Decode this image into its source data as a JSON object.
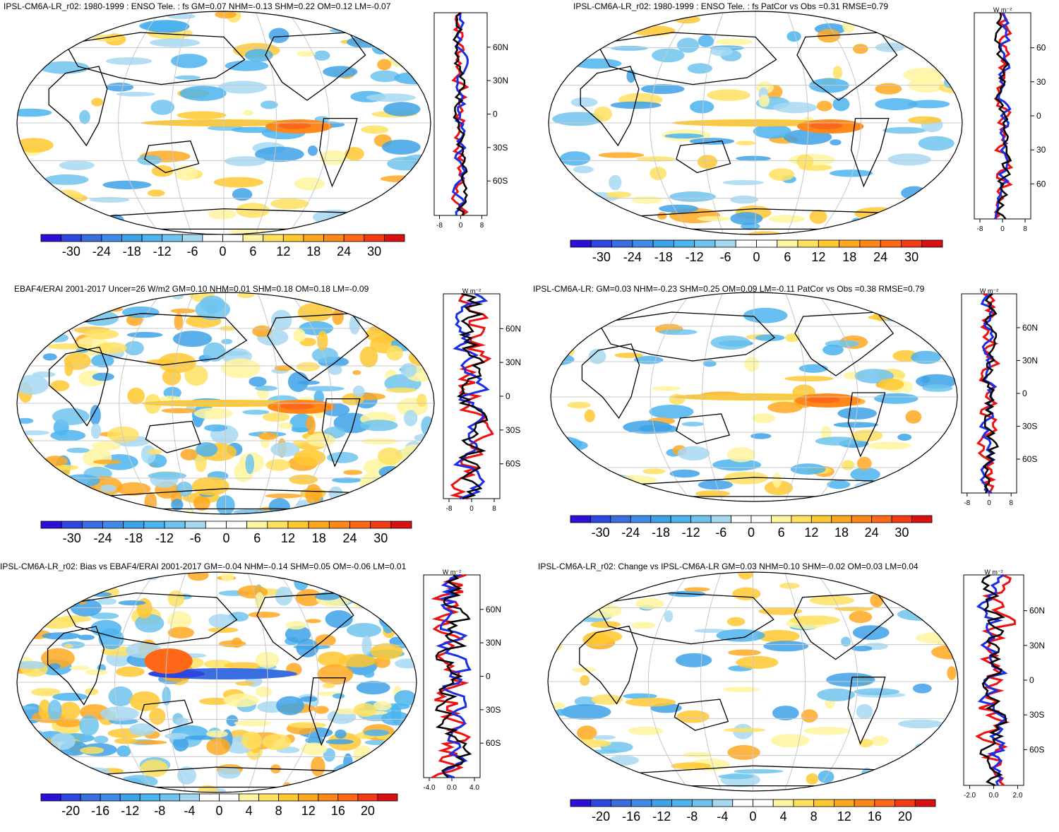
{
  "colors": {
    "scale": [
      "#2a10d8",
      "#2f45e0",
      "#3a6ee0",
      "#3f8be8",
      "#3ea2e8",
      "#4cb4ee",
      "#6ec4ee",
      "#a6d8f2",
      "#ffffff",
      "#ffffff",
      "#fff4a0",
      "#ffe060",
      "#ffc830",
      "#ffa820",
      "#ff8818",
      "#ff6818",
      "#f23a18",
      "#d81010"
    ],
    "land": "#ffffff",
    "coast": "#000000",
    "grid": "#c8c8c8",
    "line_red": "#ee1111",
    "line_blue": "#1a2ee6",
    "line_black": "#000000"
  },
  "panels": [
    {
      "title": "IPSL-CM6A-LR_r02: 1980-1999 : ENSO Tele. : fs GM=0.07 NHM=-0.13 SHM=0.22 OM=0.12 LM=-0.07",
      "colorbar_labels": [
        "-30",
        "-24",
        "-18",
        "-12",
        "-6",
        "0",
        "6",
        "12",
        "18",
        "24",
        "30"
      ],
      "zonal_xticks": [
        "-8",
        "0",
        "8"
      ],
      "zonal_ylabels": [
        "60N",
        "30N",
        "0",
        "30S",
        "60S"
      ],
      "zonal_unit": "",
      "map_seed": 1,
      "zonal_amp": 0.25
    },
    {
      "title": "IPSL-CM6A-LR_r02: 1980-1999 : ENSO Tele. : fs PatCor vs Obs =0.31 RMSE=0.79",
      "colorbar_labels": [
        "-30",
        "-24",
        "-18",
        "-12",
        "-6",
        "0",
        "6",
        "12",
        "18",
        "24",
        "30"
      ],
      "zonal_xticks": [
        "-8",
        "0",
        "8"
      ],
      "zonal_ylabels": [
        "60",
        "30",
        "0",
        "30",
        "60"
      ],
      "zonal_unit": "W m⁻²",
      "map_seed": 2,
      "zonal_amp": 0.25
    },
    {
      "title": "EBAF4/ERAI 2001-2017 Uncer=26 W/m2 GM=0.10 NHM=0.01 SHM=0.18 OM=0.18 LM=-0.09",
      "colorbar_labels": [
        "-30",
        "-24",
        "-18",
        "-12",
        "-6",
        "0",
        "6",
        "12",
        "18",
        "24",
        "30"
      ],
      "zonal_xticks": [
        "-8",
        "0",
        "8"
      ],
      "zonal_ylabels": [
        "60N",
        "30N",
        "0",
        "30S",
        "60S"
      ],
      "zonal_unit": "W m⁻²",
      "map_seed": 3,
      "zonal_amp": 0.55
    },
    {
      "title": "IPSL-CM6A-LR: GM=0.03 NHM=-0.23 SHM=0.25 OM=0.09 LM=-0.11 PatCor vs Obs =0.38 RMSE=0.79",
      "colorbar_labels": [
        "-30",
        "-24",
        "-18",
        "-12",
        "-6",
        "0",
        "6",
        "12",
        "18",
        "24",
        "30"
      ],
      "zonal_xticks": [
        "-8",
        "0",
        "8"
      ],
      "zonal_ylabels": [
        "60N",
        "30N",
        "0",
        "30S",
        "60S"
      ],
      "zonal_unit": "W m⁻²",
      "map_seed": 4,
      "zonal_amp": 0.3
    },
    {
      "title": "IPSL-CM6A-LR_r02: Bias vs EBAF4/ERAI 2001-2017 GM=-0.04 NHM=-0.14 SHM=0.05 OM=-0.06 LM=0.01",
      "colorbar_labels": [
        "-20",
        "-16",
        "-12",
        "-8",
        "-4",
        "0",
        "4",
        "8",
        "12",
        "16",
        "20"
      ],
      "zonal_xticks": [
        "-4.0",
        "0.0",
        "4.0"
      ],
      "zonal_ylabels": [
        "60N",
        "30N",
        "0",
        "30S",
        "60S"
      ],
      "zonal_unit": "W m⁻²",
      "map_seed": 5,
      "zonal_amp": 0.6
    },
    {
      "title": "IPSL-CM6A-LR_r02: Change vs IPSL-CM6A-LR GM=0.03 NHM=0.10 SHM=-0.02 OM=0.03 LM=0.04",
      "colorbar_labels": [
        "-20",
        "-16",
        "-12",
        "-8",
        "-4",
        "0",
        "4",
        "8",
        "12",
        "16",
        "20"
      ],
      "zonal_xticks": [
        "-2.0",
        "0.0",
        "2.0"
      ],
      "zonal_ylabels": [
        "60N",
        "30N",
        "0",
        "30S",
        "60S"
      ],
      "zonal_unit": "W m⁻²",
      "map_seed": 6,
      "zonal_amp": 0.5
    }
  ]
}
